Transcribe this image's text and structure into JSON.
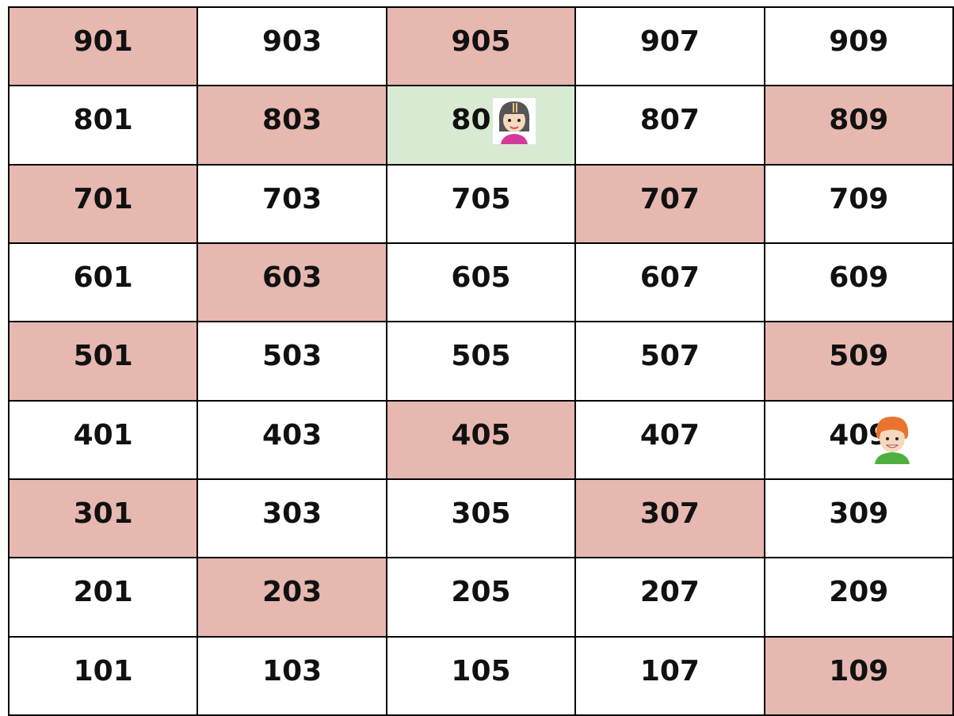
{
  "grid": {
    "rows": [
      [
        {
          "label": "901",
          "fill": "#e6b8b0"
        },
        {
          "label": "903",
          "fill": "#ffffff"
        },
        {
          "label": "905",
          "fill": "#e6b8b0"
        },
        {
          "label": "907",
          "fill": "#ffffff"
        },
        {
          "label": "909",
          "fill": "#ffffff"
        }
      ],
      [
        {
          "label": "801",
          "fill": "#ffffff"
        },
        {
          "label": "803",
          "fill": "#e6b8b0"
        },
        {
          "label": "805",
          "fill": "#d9ead3"
        },
        {
          "label": "807",
          "fill": "#ffffff"
        },
        {
          "label": "809",
          "fill": "#e6b8b0"
        }
      ],
      [
        {
          "label": "701",
          "fill": "#e6b8b0"
        },
        {
          "label": "703",
          "fill": "#ffffff"
        },
        {
          "label": "705",
          "fill": "#ffffff"
        },
        {
          "label": "707",
          "fill": "#e6b8b0"
        },
        {
          "label": "709",
          "fill": "#ffffff"
        }
      ],
      [
        {
          "label": "601",
          "fill": "#ffffff"
        },
        {
          "label": "603",
          "fill": "#e6b8b0"
        },
        {
          "label": "605",
          "fill": "#ffffff"
        },
        {
          "label": "607",
          "fill": "#ffffff"
        },
        {
          "label": "609",
          "fill": "#ffffff"
        }
      ],
      [
        {
          "label": "501",
          "fill": "#e6b8b0"
        },
        {
          "label": "503",
          "fill": "#ffffff"
        },
        {
          "label": "505",
          "fill": "#ffffff"
        },
        {
          "label": "507",
          "fill": "#ffffff"
        },
        {
          "label": "509",
          "fill": "#e6b8b0"
        }
      ],
      [
        {
          "label": "401",
          "fill": "#ffffff"
        },
        {
          "label": "403",
          "fill": "#ffffff"
        },
        {
          "label": "405",
          "fill": "#e6b8b0"
        },
        {
          "label": "407",
          "fill": "#ffffff"
        },
        {
          "label": "409",
          "fill": "#ffffff"
        }
      ],
      [
        {
          "label": "301",
          "fill": "#e6b8b0"
        },
        {
          "label": "303",
          "fill": "#ffffff"
        },
        {
          "label": "305",
          "fill": "#ffffff"
        },
        {
          "label": "307",
          "fill": "#e6b8b0"
        },
        {
          "label": "309",
          "fill": "#ffffff"
        }
      ],
      [
        {
          "label": "201",
          "fill": "#ffffff"
        },
        {
          "label": "203",
          "fill": "#e6b8b0"
        },
        {
          "label": "205",
          "fill": "#ffffff"
        },
        {
          "label": "207",
          "fill": "#ffffff"
        },
        {
          "label": "209",
          "fill": "#ffffff"
        }
      ],
      [
        {
          "label": "101",
          "fill": "#ffffff"
        },
        {
          "label": "103",
          "fill": "#ffffff"
        },
        {
          "label": "105",
          "fill": "#ffffff"
        },
        {
          "label": "107",
          "fill": "#ffffff"
        },
        {
          "label": "109",
          "fill": "#e6b8b0"
        }
      ]
    ]
  }
}
